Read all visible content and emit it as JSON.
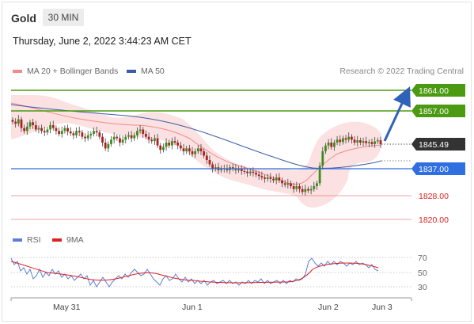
{
  "header": {
    "title": "Gold",
    "timeframe": "30 MIN"
  },
  "timestamp": "Thursday, June 2, 2022 3:44:23 AM CET",
  "legend": {
    "ma20_label": "MA 20 + Bollinger Bands",
    "ma50_label": "MA 50",
    "credit": "Research © 2022 Trading Central",
    "ma20_color": "#f28b8b",
    "ma50_color": "#3b5ea8"
  },
  "rsi_legend": {
    "rsi_label": "RSI",
    "ma9_label": "9MA",
    "rsi_color": "#5b7fd6",
    "ma9_color": "#e02020"
  },
  "price_levels": [
    {
      "value": "1864.00",
      "kind": "resistance",
      "color": "#4c9a12"
    },
    {
      "value": "1857.00",
      "kind": "resistance",
      "color": "#4c9a12"
    },
    {
      "value": "1845.49",
      "kind": "current",
      "color": "#333333"
    },
    {
      "value": "1837.00",
      "kind": "pivot",
      "color": "#2f6fdf"
    },
    {
      "value": "1828.00",
      "kind": "support",
      "color": "#e02020"
    },
    {
      "value": "1820.00",
      "kind": "support",
      "color": "#e02020"
    }
  ],
  "rsi_levels": [
    "70",
    "50",
    "30"
  ],
  "x_labels": [
    "May 31",
    "Jun 1",
    "Jun 2",
    "Jun 3"
  ],
  "chart_data": {
    "type": "candlestick",
    "y_range": [
      1818,
      1866
    ],
    "candles_close": [
      1853.2,
      1852.5,
      1854,
      1851,
      1850,
      1851.5,
      1853,
      1852,
      1850.5,
      1851,
      1850,
      1849.5,
      1850.5,
      1852,
      1851,
      1850,
      1849,
      1850,
      1851,
      1849.8,
      1849.2,
      1848.5,
      1850,
      1849.5,
      1848,
      1847.5,
      1848.5,
      1849,
      1850,
      1849.5,
      1848,
      1846,
      1844,
      1845.5,
      1847,
      1848,
      1847.5,
      1846,
      1847,
      1848,
      1848.5,
      1847.5,
      1848.5,
      1850,
      1850.5,
      1849,
      1848,
      1847,
      1846.5,
      1847.5,
      1845,
      1843.5,
      1844.5,
      1846,
      1845,
      1846.5,
      1846,
      1845,
      1844,
      1843,
      1844,
      1843,
      1842,
      1843,
      1844,
      1843,
      1841.5,
      1840,
      1838.5,
      1837,
      1837.5,
      1836.5,
      1837.2,
      1837,
      1836.5,
      1837.5,
      1837,
      1836.5,
      1837,
      1836.2,
      1836,
      1835.5,
      1836,
      1835.6,
      1835,
      1834.5,
      1834,
      1833.5,
      1834,
      1833.5,
      1833,
      1834,
      1833,
      1832,
      1831.5,
      1832,
      1831,
      1830,
      1831,
      1830,
      1829,
      1830,
      1829.5,
      1830,
      1831,
      1832,
      1838,
      1843,
      1845,
      1846,
      1844.5,
      1846,
      1847,
      1846.2,
      1847.5,
      1847,
      1848,
      1847,
      1846,
      1846.8,
      1846,
      1846.5,
      1845.8,
      1846.2,
      1845.5,
      1846.4,
      1846.8,
      1845.49
    ],
    "bollinger_upper_approx": [
      1856,
      1856,
      1857,
      1857,
      1856,
      1856,
      1856,
      1855,
      1855,
      1855,
      1855,
      1854,
      1854,
      1854,
      1852,
      1853,
      1852,
      1852,
      1854,
      1850,
      1850,
      1851,
      1845,
      1843,
      1842,
      1841,
      1840,
      1839,
      1839,
      1844,
      1847,
      1848,
      1849,
      1850,
      1849,
      1849
    ],
    "ma50_end": 1839.5,
    "rsi_range": [
      20,
      80
    ],
    "rsi_last": 52,
    "projected_target": 1864.0
  }
}
